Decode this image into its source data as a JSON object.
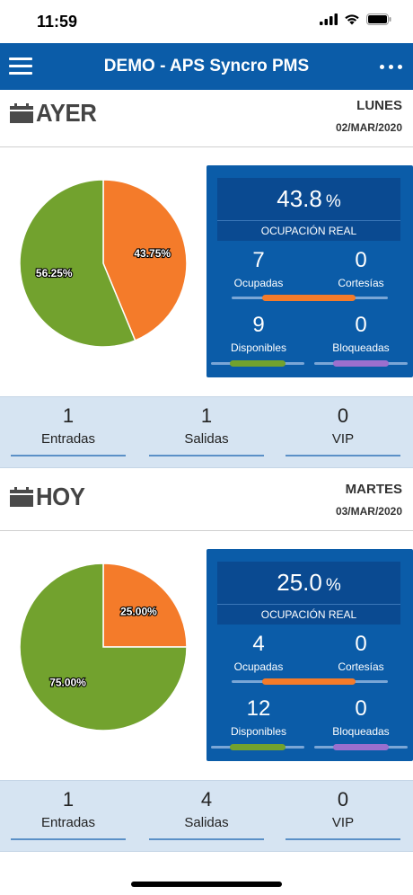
{
  "status_bar": {
    "time": "11:59"
  },
  "navbar": {
    "title": "DEMO - APS Syncro PMS"
  },
  "colors": {
    "navbar": "#0b5ca8",
    "panel": "#0b5ca8",
    "occupied": "#f47b2a",
    "available": "#72a22e",
    "blocked": "#9b6fce",
    "summary_bg": "#d6e4f2"
  },
  "days": [
    {
      "title": "AYER",
      "weekday": "LUNES",
      "date": "02/MAR/2020",
      "chart_data": {
        "type": "pie",
        "slices": [
          {
            "label": "43.75%",
            "value": 43.75,
            "color": "#f47b2a"
          },
          {
            "label": "56.25%",
            "value": 56.25,
            "color": "#72a22e"
          }
        ]
      },
      "occupancy": {
        "value": "43.8",
        "unit": "%",
        "label": "OCUPACIÓN REAL"
      },
      "stats": {
        "ocupadas": {
          "value": "7",
          "label": "Ocupadas"
        },
        "cortesias": {
          "value": "0",
          "label": "Cortesías"
        },
        "disponibles": {
          "value": "9",
          "label": "Disponibles"
        },
        "bloqueadas": {
          "value": "0",
          "label": "Bloqueadas"
        }
      },
      "summary": {
        "entradas": {
          "value": "1",
          "label": "Entradas"
        },
        "salidas": {
          "value": "1",
          "label": "Salidas"
        },
        "vip": {
          "value": "0",
          "label": "VIP"
        }
      }
    },
    {
      "title": "HOY",
      "weekday": "MARTES",
      "date": "03/MAR/2020",
      "chart_data": {
        "type": "pie",
        "slices": [
          {
            "label": "25.00%",
            "value": 25.0,
            "color": "#f47b2a"
          },
          {
            "label": "75.00%",
            "value": 75.0,
            "color": "#72a22e"
          }
        ]
      },
      "occupancy": {
        "value": "25.0",
        "unit": "%",
        "label": "OCUPACIÓN REAL"
      },
      "stats": {
        "ocupadas": {
          "value": "4",
          "label": "Ocupadas"
        },
        "cortesias": {
          "value": "0",
          "label": "Cortesías"
        },
        "disponibles": {
          "value": "12",
          "label": "Disponibles"
        },
        "bloqueadas": {
          "value": "0",
          "label": "Bloqueadas"
        }
      },
      "summary": {
        "entradas": {
          "value": "1",
          "label": "Entradas"
        },
        "salidas": {
          "value": "4",
          "label": "Salidas"
        },
        "vip": {
          "value": "0",
          "label": "VIP"
        }
      }
    }
  ]
}
